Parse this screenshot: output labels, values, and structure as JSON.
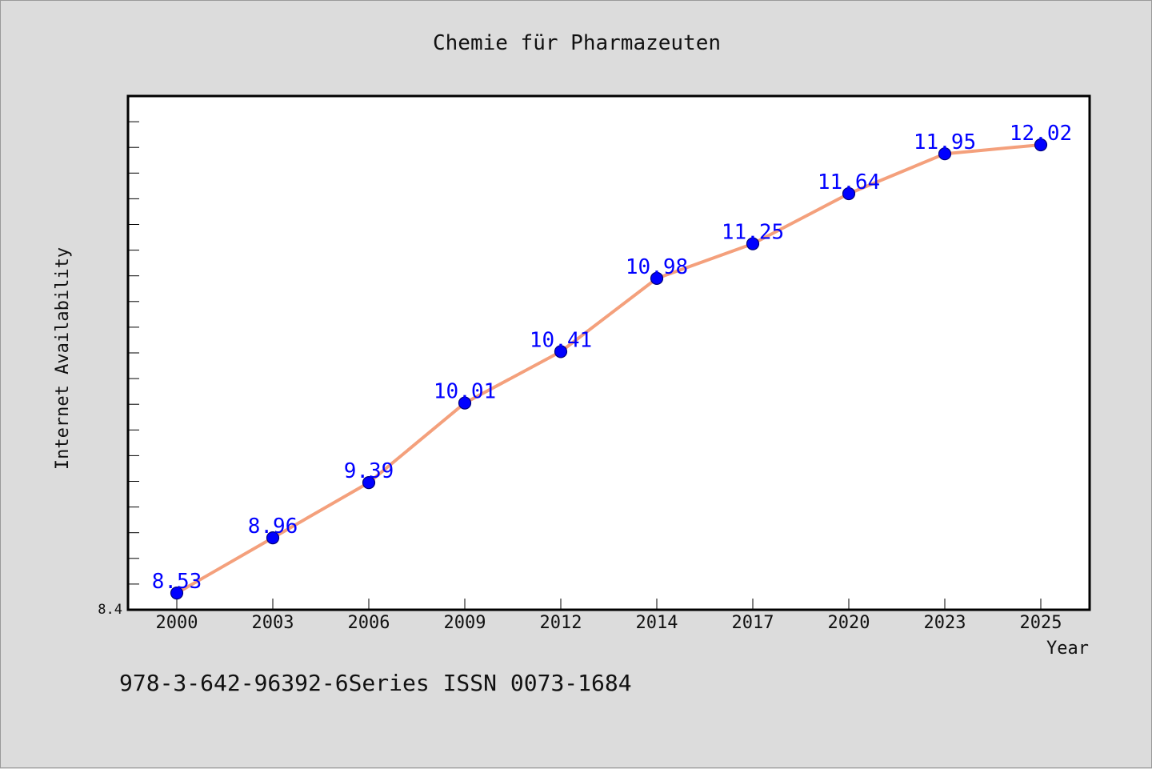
{
  "chart_data": {
    "type": "line",
    "title": "Chemie für Pharmazeuten",
    "xlabel": "Year",
    "ylabel": "Internet Availability",
    "categories": [
      "2000",
      "2003",
      "2006",
      "2009",
      "2012",
      "2014",
      "2017",
      "2020",
      "2023",
      "2025"
    ],
    "values": [
      8.53,
      8.96,
      9.39,
      10.01,
      10.41,
      10.98,
      11.25,
      11.64,
      11.95,
      12.02
    ],
    "value_labels": [
      "8.53",
      "8.96",
      "9.39",
      "10.01",
      "10.41",
      "10.98",
      "11.25",
      "11.64",
      "11.95",
      "12.02"
    ],
    "ylim": [
      8.4,
      12.4
    ],
    "y_tick_labels": [
      "8.4"
    ],
    "grid": false,
    "legend": "none",
    "colors": {
      "line": "#f4a07c",
      "marker": "#0000ff",
      "label": "#0000ff",
      "background": "#dcdcdc",
      "plot_bg": "#ffffff"
    }
  },
  "footer": {
    "text": "978-3-642-96392-6Series ISSN 0073-1684"
  }
}
